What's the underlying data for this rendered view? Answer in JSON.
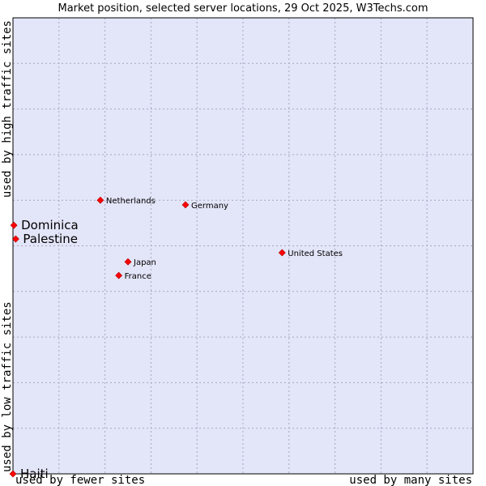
{
  "chart_data": {
    "type": "scatter",
    "title": "Market position, selected server locations, 29 Oct 2025, W3Techs.com",
    "xlabel_left": "used by fewer sites",
    "xlabel_right": "used by many sites",
    "ylabel_bottom": "used by low traffic sites",
    "ylabel_top": "used by high traffic sites",
    "xlim": [
      0,
      100
    ],
    "ylim": [
      0,
      100
    ],
    "grid": true,
    "points": [
      {
        "name": "Netherlands",
        "x": 19.0,
        "y": 60.0,
        "label_size": "small"
      },
      {
        "name": "Germany",
        "x": 37.5,
        "y": 59.0,
        "label_size": "small"
      },
      {
        "name": "Dominica",
        "x": 0.2,
        "y": 54.5,
        "label_size": "large"
      },
      {
        "name": "Palestine",
        "x": 0.6,
        "y": 51.5,
        "label_size": "large"
      },
      {
        "name": "United States",
        "x": 58.5,
        "y": 48.5,
        "label_size": "small"
      },
      {
        "name": "Japan",
        "x": 25.0,
        "y": 46.5,
        "label_size": "small"
      },
      {
        "name": "France",
        "x": 23.0,
        "y": 43.5,
        "label_size": "small"
      },
      {
        "name": "Haiti",
        "x": 0.0,
        "y": 0.0,
        "label_size": "large"
      }
    ]
  },
  "colors": {
    "plot_bg": "#e3e5f8",
    "grid": "#a8a8bf",
    "marker": "#ff0000",
    "marker_edge": "#aa0000"
  }
}
